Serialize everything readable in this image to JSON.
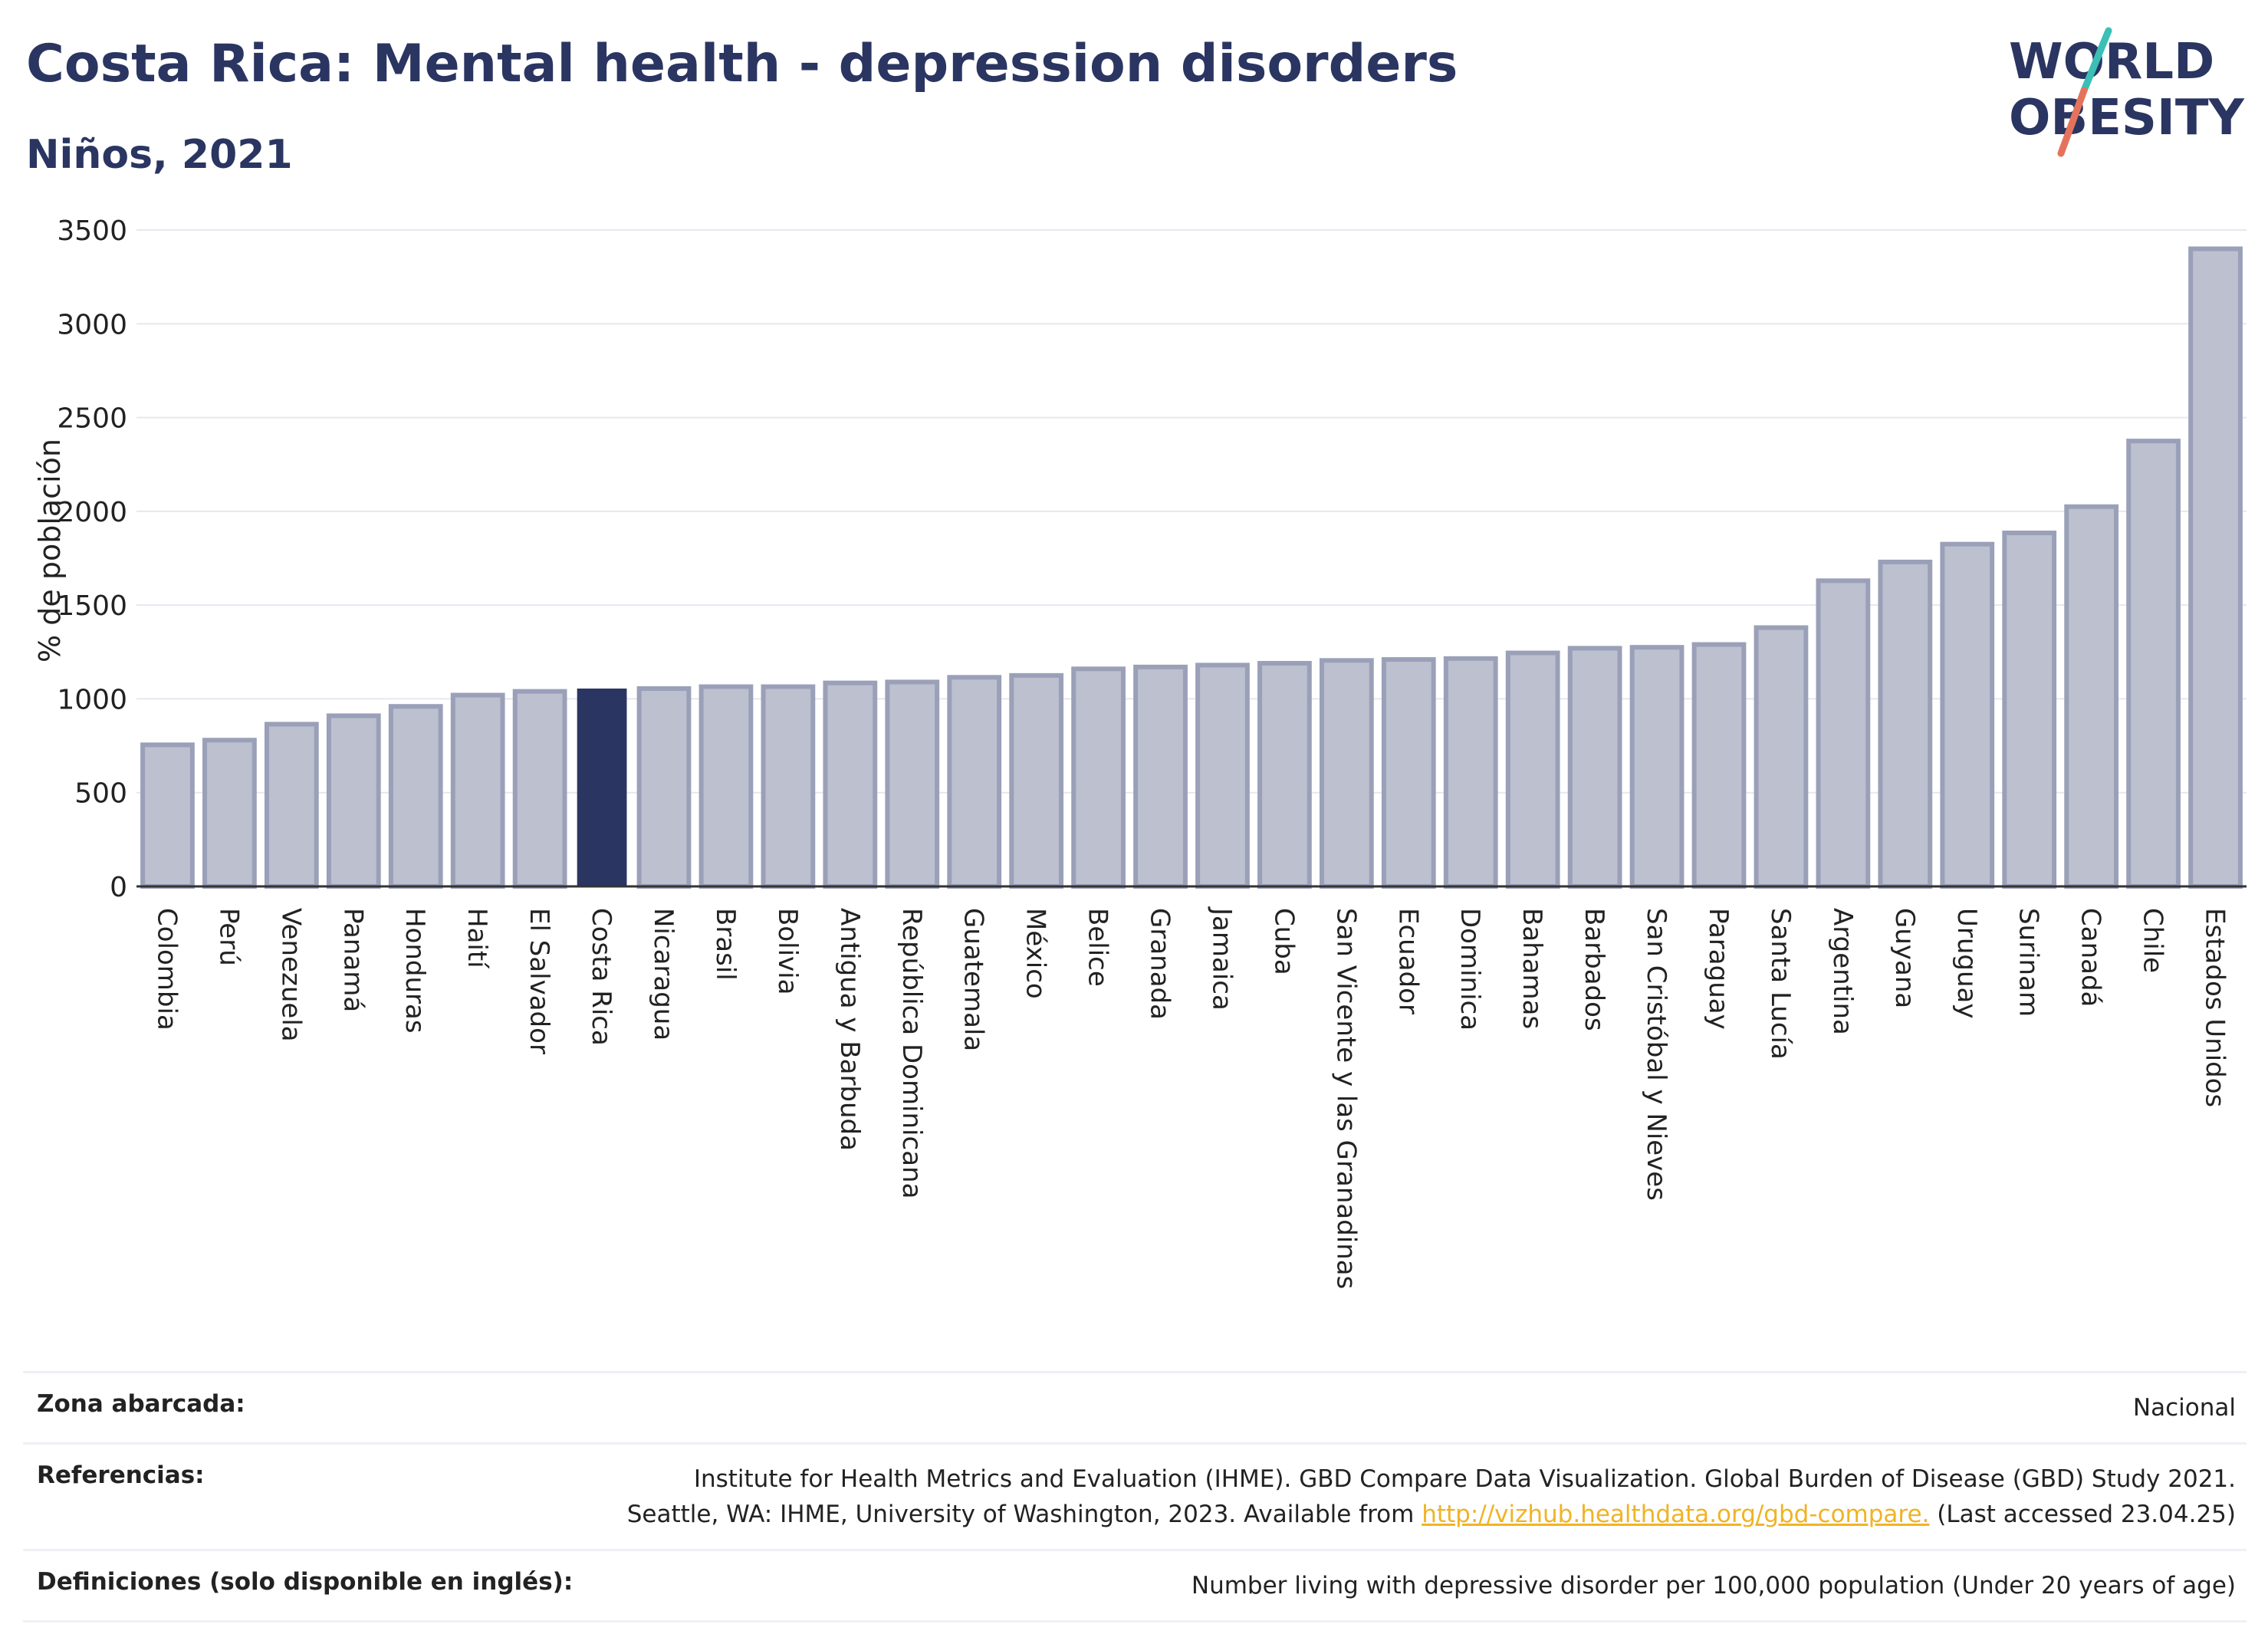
{
  "header": {
    "title": "Costa Rica: Mental health - depression disorders",
    "subtitle": "Niños, 2021"
  },
  "logo": {
    "line1": "WORLD",
    "line2": "OBESITY"
  },
  "colors": {
    "bar": "#bcc0cf",
    "bar_edge": "#9aa0b8",
    "highlight": "#2a3561",
    "title": "#2a3561",
    "link": "#f0b323"
  },
  "chart_data": {
    "type": "bar",
    "ylabel": "% de población",
    "ylim": [
      0,
      3500
    ],
    "yticks": [
      0,
      500,
      1000,
      1500,
      2000,
      2500,
      3000,
      3500
    ],
    "grid": true,
    "highlight": "Costa Rica",
    "categories": [
      "Colombia",
      "Perú",
      "Venezuela",
      "Panamá",
      "Honduras",
      "Haití",
      "El Salvador",
      "Costa Rica",
      "Nicaragua",
      "Brasil",
      "Bolivia",
      "Antigua y Barbuda",
      "República Dominicana",
      "Guatemala",
      "México",
      "Belice",
      "Granada",
      "Jamaica",
      "Cuba",
      "San Vicente y las Granadinas",
      "Ecuador",
      "Dominica",
      "Bahamas",
      "Barbados",
      "San Cristóbal y Nieves",
      "Paraguay",
      "Santa Lucía",
      "Argentina",
      "Guyana",
      "Uruguay",
      "Surinam",
      "Canadá",
      "Chile",
      "Estados Unidos"
    ],
    "values": [
      755,
      780,
      865,
      910,
      960,
      1020,
      1040,
      1055,
      1055,
      1065,
      1065,
      1085,
      1090,
      1115,
      1125,
      1160,
      1170,
      1180,
      1190,
      1205,
      1210,
      1215,
      1245,
      1270,
      1275,
      1290,
      1380,
      1630,
      1730,
      1825,
      1885,
      2025,
      2375,
      3400
    ]
  },
  "info": {
    "zone_label": "Zona abarcada:",
    "zone_value": "Nacional",
    "ref_label": "Referencias:",
    "ref_line1": "Institute for Health Metrics and Evaluation (IHME). GBD Compare Data Visualization. Global Burden of Disease (GBD) Study 2021.",
    "ref_line2_pre": "Seattle, WA: IHME, University of Washington, 2023. Available from ",
    "ref_link": "http://vizhub.healthdata.org/gbd-compare.",
    "ref_line2_post": " (Last accessed 23.04.25)",
    "def_label": "Definiciones (solo disponible en inglés):",
    "def_value": "Number living with depressive disorder per 100,000 population (Under 20 years of age)"
  }
}
